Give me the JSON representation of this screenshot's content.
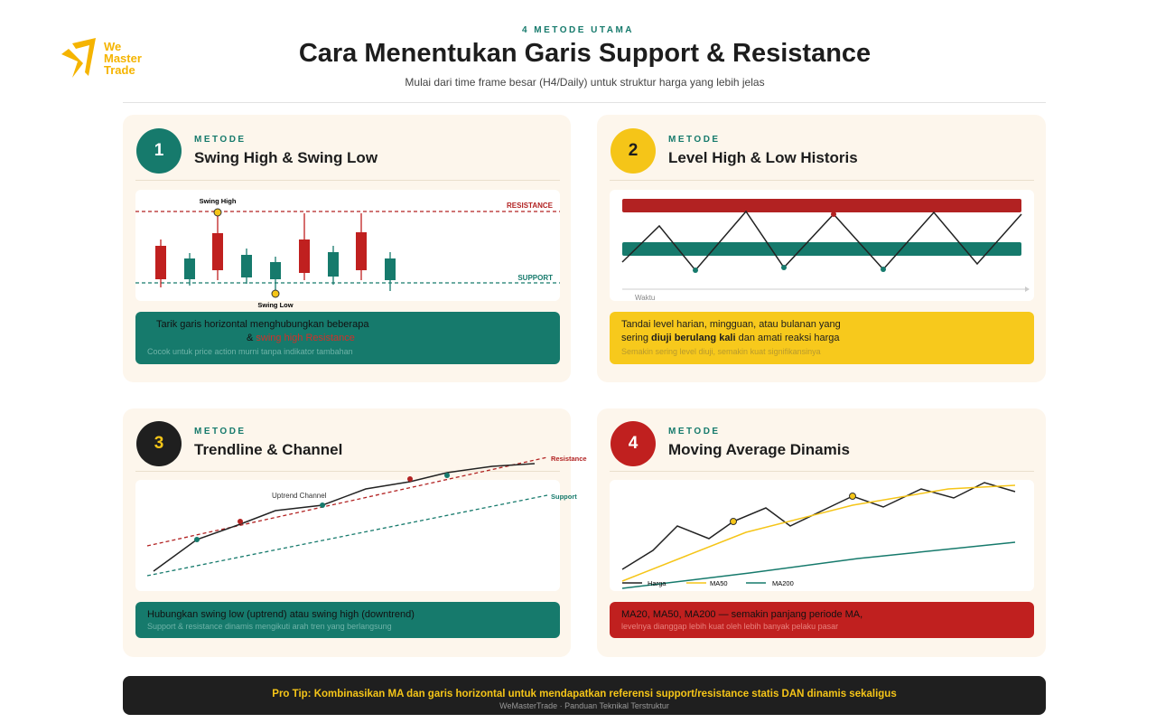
{
  "header": {
    "brand": [
      "We",
      "Master",
      "Trade"
    ],
    "kicker": "4 METODE UTAMA",
    "title": "Cara Menentukan Garis Support & Resistance",
    "subtitle": "Mulai dari time frame besar (H4/Daily) untuk struktur harga yang lebih jelas"
  },
  "methods": [
    {
      "number": "1",
      "kicker": "METODE",
      "title": "Swing High & Swing Low",
      "diagram": {
        "swing_high": "Swing High",
        "swing_low": "Swing Low",
        "resistance": "RESISTANCE",
        "support": "SUPPORT"
      },
      "note": {
        "line1": "Tarik garis horizontal menghubungkan beberapa",
        "line2": [
          "&",
          "swing high",
          "Resistance"
        ],
        "caption": "Cocok untuk price action murni tanpa indikator tambahan"
      }
    },
    {
      "number": "2",
      "kicker": "METODE",
      "title": "Level High & Low Historis",
      "diagram": {
        "axis": "Waktu"
      },
      "note": {
        "line1": "Tandai level harian, mingguan, atau bulanan yang",
        "line2": [
          "sering",
          "diuji berulang kali",
          "dan amati reaksi harga"
        ],
        "caption": "Semakin sering level diuji, semakin kuat signifikansinya"
      }
    },
    {
      "number": "3",
      "kicker": "METODE",
      "title": "Trendline & Channel",
      "diagram": {
        "channel": "Uptrend Channel",
        "resistance": "Resistance",
        "support": "Support"
      },
      "note": {
        "line1": "Hubungkan swing low (uptrend) atau swing high (downtrend)",
        "caption": "Support & resistance dinamis mengikuti arah tren yang berlangsung"
      }
    },
    {
      "number": "4",
      "kicker": "METODE",
      "title": "Moving Average Dinamis",
      "diagram": {
        "legend": [
          "Harga",
          "MA50",
          "MA200"
        ]
      },
      "note": {
        "line1": "MA20, MA50, MA200 — semakin panjang periode MA,",
        "caption": "levelnya dianggap lebih kuat oleh lebih banyak pelaku pasar"
      }
    }
  ],
  "footer": {
    "tip": "Pro Tip: Kombinasikan MA dan garis horizontal untuk mendapatkan referensi support/resistance statis DAN dinamis sekaligus",
    "credit": "WeMasterTrade · Panduan Teknikal Terstruktur"
  }
}
